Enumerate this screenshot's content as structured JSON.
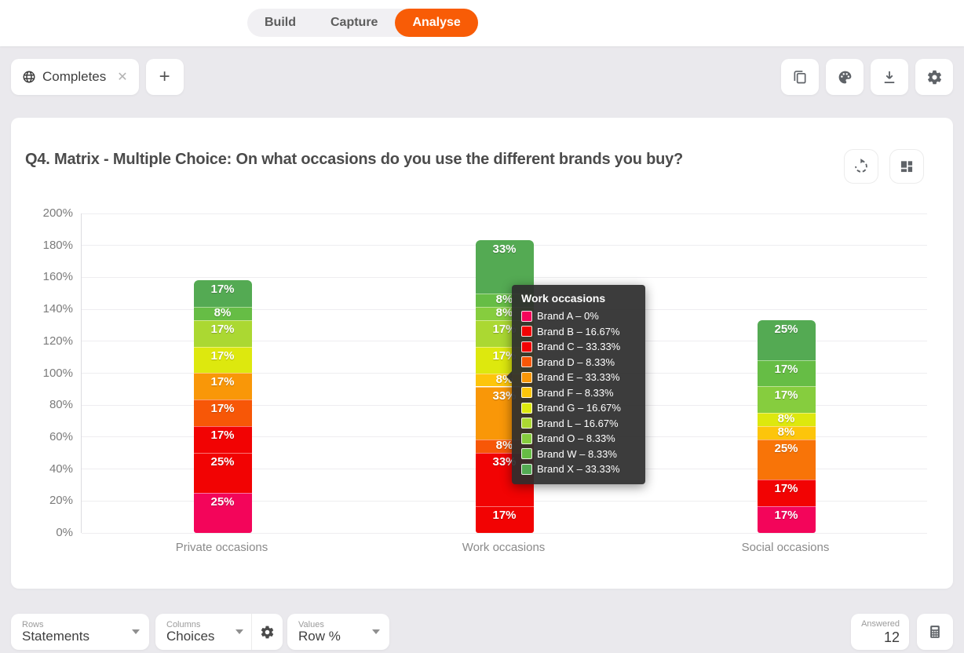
{
  "topnav": {
    "items": [
      {
        "label": "Build",
        "active": false
      },
      {
        "label": "Capture",
        "active": false
      },
      {
        "label": "Analyse",
        "active": true
      }
    ],
    "active_color": "#f85c06"
  },
  "filter_bar": {
    "tab": {
      "icon": "globe-icon",
      "label": "Completes",
      "close": "✕"
    },
    "add_label": "+",
    "actions": [
      {
        "icon": "copy-icon"
      },
      {
        "icon": "palette-icon"
      },
      {
        "icon": "download-icon"
      },
      {
        "icon": "settings-icon"
      }
    ]
  },
  "card": {
    "title": "Q4. Matrix - Multiple Choice: On what occasions do you use the different brands you buy?",
    "actions": [
      {
        "icon": "refresh-icon"
      },
      {
        "icon": "layout-icon"
      }
    ]
  },
  "chart_data": {
    "type": "bar",
    "stacked": true,
    "ylim": [
      0,
      200
    ],
    "ytick_step": 20,
    "yticks": [
      "0%",
      "20%",
      "40%",
      "60%",
      "80%",
      "100%",
      "120%",
      "140%",
      "160%",
      "180%",
      "200%"
    ],
    "grid": true,
    "categories": [
      "Private occasions",
      "Work occasions",
      "Social occasions"
    ],
    "segments_order": "bottom-to-top",
    "bars": [
      {
        "category": "Private occasions",
        "segments": [
          {
            "brand": "Brand A",
            "value": 25,
            "label": "25%",
            "color": "#f3055a"
          },
          {
            "brand": "Brand B",
            "value": 25,
            "label": "25%",
            "color": "#f20303"
          },
          {
            "brand": "Brand C",
            "value": 16.67,
            "label": "17%",
            "color": "#f20303"
          },
          {
            "brand": "Brand D",
            "value": 16.67,
            "label": "17%",
            "color": "#f75707"
          },
          {
            "brand": "Brand E",
            "value": 16.67,
            "label": "17%",
            "color": "#f99708"
          },
          {
            "brand": "Brand G",
            "value": 16.67,
            "label": "17%",
            "color": "#dde80e"
          },
          {
            "brand": "Brand L",
            "value": 16.67,
            "label": "17%",
            "color": "#abd832"
          },
          {
            "brand": "Brand W",
            "value": 8.33,
            "label": "8%",
            "color": "#66bd45"
          },
          {
            "brand": "Brand X",
            "value": 16.67,
            "label": "17%",
            "color": "#54aa53"
          }
        ]
      },
      {
        "category": "Work occasions",
        "segments": [
          {
            "brand": "Brand B",
            "value": 16.67,
            "label": "17%",
            "color": "#f20303"
          },
          {
            "brand": "Brand C",
            "value": 33.33,
            "label": "33%",
            "color": "#f20303"
          },
          {
            "brand": "Brand D",
            "value": 8.33,
            "label": "8%",
            "color": "#f75707"
          },
          {
            "brand": "Brand E",
            "value": 33.33,
            "label": "33%",
            "color": "#f99708"
          },
          {
            "brand": "Brand F",
            "value": 8.33,
            "label": "8%",
            "color": "#fdc50b"
          },
          {
            "brand": "Brand G",
            "value": 16.67,
            "label": "17%",
            "color": "#dde80e"
          },
          {
            "brand": "Brand L",
            "value": 16.67,
            "label": "17%",
            "color": "#abd832"
          },
          {
            "brand": "Brand O",
            "value": 8.33,
            "label": "8%",
            "color": "#86cd3e"
          },
          {
            "brand": "Brand W",
            "value": 8.33,
            "label": "8%",
            "color": "#66bd45"
          },
          {
            "brand": "Brand X",
            "value": 33.33,
            "label": "33%",
            "color": "#54aa53"
          }
        ]
      },
      {
        "category": "Social occasions",
        "segments": [
          {
            "brand": "Brand A",
            "value": 16.67,
            "label": "17%",
            "color": "#f3055a"
          },
          {
            "brand": "Brand B",
            "value": 16.67,
            "label": "17%",
            "color": "#f20303"
          },
          {
            "brand": "Brand E",
            "value": 25,
            "label": "25%",
            "color": "#f87408"
          },
          {
            "brand": "Brand F",
            "value": 8.33,
            "label": "8%",
            "color": "#fdc50b"
          },
          {
            "brand": "Brand G",
            "value": 8.33,
            "label": "8%",
            "color": "#dde80e"
          },
          {
            "brand": "Brand O",
            "value": 16.67,
            "label": "17%",
            "color": "#86cd3e"
          },
          {
            "brand": "Brand W",
            "value": 16.67,
            "label": "17%",
            "color": "#66bd45"
          },
          {
            "brand": "Brand X",
            "value": 25,
            "label": "25%",
            "color": "#54aa53"
          }
        ]
      }
    ]
  },
  "tooltip": {
    "title": "Work occasions",
    "bg": "#2d2d2d",
    "rows": [
      {
        "label": "Brand A – 0%",
        "color": "#f3055a"
      },
      {
        "label": "Brand B – 16.67%",
        "color": "#f20303"
      },
      {
        "label": "Brand C – 33.33%",
        "color": "#f20303"
      },
      {
        "label": "Brand D – 8.33%",
        "color": "#f75707"
      },
      {
        "label": "Brand E – 33.33%",
        "color": "#f99708"
      },
      {
        "label": "Brand F – 8.33%",
        "color": "#fdc50b"
      },
      {
        "label": "Brand G – 16.67%",
        "color": "#dde80e"
      },
      {
        "label": "Brand L – 16.67%",
        "color": "#abd832"
      },
      {
        "label": "Brand O – 8.33%",
        "color": "#86cd3e"
      },
      {
        "label": "Brand W – 8.33%",
        "color": "#66bd45"
      },
      {
        "label": "Brand X – 33.33%",
        "color": "#54aa53"
      }
    ]
  },
  "bottom_bar": {
    "rows": {
      "label": "Rows",
      "value": "Statements"
    },
    "columns": {
      "label": "Columns",
      "value": "Choices"
    },
    "values": {
      "label": "Values",
      "value": "Row %"
    },
    "answered": {
      "label": "Answered",
      "value": "12"
    }
  }
}
